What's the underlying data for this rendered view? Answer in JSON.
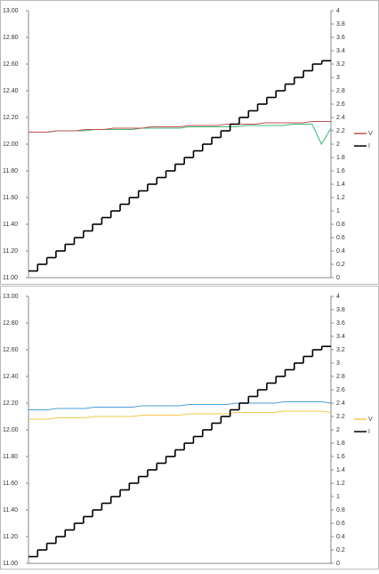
{
  "chart_data": [
    {
      "type": "line",
      "legend": "right",
      "ylim": [
        11,
        13
      ],
      "yticks": [
        {
          "value": 11,
          "label": "11.00"
        },
        {
          "value": 11.2,
          "label": "11.20"
        },
        {
          "value": 11.4,
          "label": "11.40"
        },
        {
          "value": 11.6,
          "label": "11.60"
        },
        {
          "value": 11.8,
          "label": "11.80"
        },
        {
          "value": 12,
          "label": "12.00"
        },
        {
          "value": 12.2,
          "label": "12.20"
        },
        {
          "value": 12.4,
          "label": "12.40"
        },
        {
          "value": 12.6,
          "label": "12.60"
        },
        {
          "value": 12.8,
          "label": "12.80"
        },
        {
          "value": 13,
          "label": "13.00"
        }
      ],
      "y2lim": [
        0,
        4
      ],
      "y2ticks": [
        0,
        0.2,
        0.4,
        0.6,
        0.8,
        1,
        1.2,
        1.4,
        1.6,
        1.8,
        2,
        2.2,
        2.4,
        2.6,
        2.8,
        3,
        3.2,
        3.4,
        3.6,
        3.8,
        4
      ],
      "series": [
        {
          "color": "#3cb878",
          "values": [
            12.09,
            12.09,
            12.09,
            12.1,
            12.1,
            12.1,
            12.1,
            12.11,
            12.11,
            12.11,
            12.11,
            12.11,
            12.12,
            12.12,
            12.12,
            12.12,
            12.12,
            12.13,
            12.13,
            12.13,
            12.13,
            12.13,
            12.13,
            12.14,
            12.14,
            12.14,
            12.14,
            12.14,
            12.15,
            12.15,
            12.15,
            12.0,
            12.12
          ]
        },
        {
          "name": "V",
          "color": "#c0504d",
          "values": [
            12.09,
            12.09,
            12.09,
            12.1,
            12.1,
            12.1,
            12.11,
            12.11,
            12.11,
            12.12,
            12.12,
            12.12,
            12.12,
            12.13,
            12.13,
            12.13,
            12.13,
            12.14,
            12.14,
            12.14,
            12.14,
            12.15,
            12.15,
            12.15,
            12.15,
            12.16,
            12.16,
            12.16,
            12.16,
            12.16,
            12.17,
            12.17,
            12.17
          ]
        },
        {
          "name": "I",
          "color": "#000000",
          "axis": "y2",
          "step": true,
          "values": [
            0.1,
            0.2,
            0.3,
            0.4,
            0.5,
            0.6,
            0.7,
            0.8,
            0.9,
            1.0,
            1.1,
            1.2,
            1.3,
            1.4,
            1.5,
            1.6,
            1.7,
            1.8,
            1.9,
            2.0,
            2.1,
            2.2,
            2.3,
            2.4,
            2.5,
            2.6,
            2.7,
            2.8,
            2.9,
            3.0,
            3.1,
            3.2,
            3.25
          ]
        }
      ]
    },
    {
      "type": "line",
      "legend": "right",
      "ylim": [
        11,
        13
      ],
      "yticks": [
        {
          "value": 11,
          "label": "11.00"
        },
        {
          "value": 11.2,
          "label": "11.20"
        },
        {
          "value": 11.4,
          "label": "11.40"
        },
        {
          "value": 11.6,
          "label": "11.60"
        },
        {
          "value": 11.8,
          "label": "11.80"
        },
        {
          "value": 12,
          "label": "12.00"
        },
        {
          "value": 12.2,
          "label": "12.20"
        },
        {
          "value": 12.4,
          "label": "12.40"
        },
        {
          "value": 12.6,
          "label": "12.60"
        },
        {
          "value": 12.8,
          "label": "12.80"
        },
        {
          "value": 13,
          "label": "13.00"
        }
      ],
      "y2lim": [
        0,
        4
      ],
      "y2ticks": [
        0,
        0.2,
        0.4,
        0.6,
        0.8,
        1,
        1.2,
        1.4,
        1.6,
        1.8,
        2,
        2.2,
        2.4,
        2.6,
        2.8,
        3,
        3.2,
        3.4,
        3.6,
        3.8,
        4
      ],
      "series": [
        {
          "color": "#4a9fd4",
          "values": [
            12.15,
            12.15,
            12.15,
            12.16,
            12.16,
            12.16,
            12.16,
            12.17,
            12.17,
            12.17,
            12.17,
            12.17,
            12.18,
            12.18,
            12.18,
            12.18,
            12.18,
            12.19,
            12.19,
            12.19,
            12.19,
            12.19,
            12.2,
            12.2,
            12.2,
            12.2,
            12.2,
            12.21,
            12.21,
            12.21,
            12.21,
            12.21,
            12.2
          ]
        },
        {
          "name": "V",
          "color": "#f2c84b",
          "values": [
            12.08,
            12.08,
            12.08,
            12.09,
            12.09,
            12.09,
            12.09,
            12.1,
            12.1,
            12.1,
            12.1,
            12.1,
            12.11,
            12.11,
            12.11,
            12.11,
            12.11,
            12.12,
            12.12,
            12.12,
            12.12,
            12.12,
            12.13,
            12.13,
            12.13,
            12.13,
            12.13,
            12.14,
            12.14,
            12.14,
            12.14,
            12.14,
            12.13
          ]
        },
        {
          "name": "I",
          "color": "#000000",
          "axis": "y2",
          "step": true,
          "values": [
            0.1,
            0.2,
            0.3,
            0.4,
            0.5,
            0.6,
            0.7,
            0.8,
            0.9,
            1.0,
            1.1,
            1.2,
            1.3,
            1.4,
            1.5,
            1.6,
            1.7,
            1.8,
            1.9,
            2.0,
            2.1,
            2.2,
            2.3,
            2.4,
            2.5,
            2.6,
            2.7,
            2.8,
            2.9,
            3.0,
            3.1,
            3.2,
            3.25
          ]
        }
      ]
    }
  ]
}
